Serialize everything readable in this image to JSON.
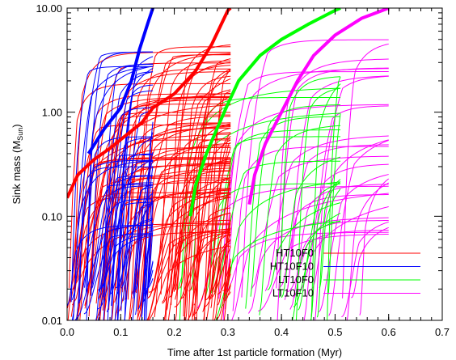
{
  "chart_data": {
    "type": "line",
    "xlabel": "Time after 1st particle formation (Myr)",
    "ylabel": "Sink mass (M",
    "ylabel_sub": "Sun",
    "ylabel_close": ")",
    "xlim": [
      0.0,
      0.7
    ],
    "ylim": [
      0.01,
      10.0
    ],
    "yscale": "log",
    "x_ticks": [
      0.0,
      0.1,
      0.2,
      0.3,
      0.4,
      0.5,
      0.6,
      0.7
    ],
    "x_tick_labels": [
      "0.0",
      "0.1",
      "0.2",
      "0.3",
      "0.4",
      "0.5",
      "0.6",
      "0.7"
    ],
    "y_ticks": [
      0.01,
      0.1,
      1.0,
      10.0
    ],
    "y_tick_labels": [
      "0.01",
      "0.10",
      "1.00",
      "10.00"
    ],
    "grid": false,
    "legend_position": "bottom-right",
    "series": [
      {
        "name": "HT10F0",
        "color": "#ff0000",
        "end_time": 0.305,
        "total_mass_curve": [
          [
            0.0,
            0.15
          ],
          [
            0.02,
            0.25
          ],
          [
            0.05,
            0.35
          ],
          [
            0.08,
            0.45
          ],
          [
            0.11,
            0.6
          ],
          [
            0.14,
            0.8
          ],
          [
            0.16,
            1.1
          ],
          [
            0.2,
            1.5
          ],
          [
            0.24,
            2.5
          ],
          [
            0.27,
            4.5
          ],
          [
            0.3,
            9.5
          ],
          [
            0.305,
            10.0
          ]
        ],
        "sink_count_approx": 120
      },
      {
        "name": "HT10F10",
        "color": "#0000ff",
        "end_time": 0.16,
        "total_mass_curve": [
          [
            0.04,
            0.4
          ],
          [
            0.07,
            0.7
          ],
          [
            0.1,
            1.1
          ],
          [
            0.12,
            2.0
          ],
          [
            0.135,
            4.0
          ],
          [
            0.15,
            7.0
          ],
          [
            0.16,
            10.0
          ]
        ],
        "sink_count_approx": 60
      },
      {
        "name": "LT10F0",
        "color": "#00ff00",
        "end_time": 0.51,
        "total_mass_curve": [
          [
            0.23,
            0.1
          ],
          [
            0.24,
            0.2
          ],
          [
            0.26,
            0.4
          ],
          [
            0.28,
            0.7
          ],
          [
            0.3,
            1.2
          ],
          [
            0.32,
            2.0
          ],
          [
            0.36,
            3.5
          ],
          [
            0.4,
            5.0
          ],
          [
            0.45,
            7.0
          ],
          [
            0.5,
            9.5
          ],
          [
            0.51,
            10.0
          ]
        ],
        "sink_count_approx": 25
      },
      {
        "name": "LT10F10",
        "color": "#ff00ff",
        "end_time": 0.6,
        "total_mass_curve": [
          [
            0.34,
            0.13
          ],
          [
            0.35,
            0.25
          ],
          [
            0.37,
            0.5
          ],
          [
            0.4,
            1.0
          ],
          [
            0.43,
            2.0
          ],
          [
            0.46,
            3.5
          ],
          [
            0.5,
            5.5
          ],
          [
            0.55,
            8.0
          ],
          [
            0.6,
            10.0
          ]
        ],
        "sink_count_approx": 30
      }
    ]
  }
}
